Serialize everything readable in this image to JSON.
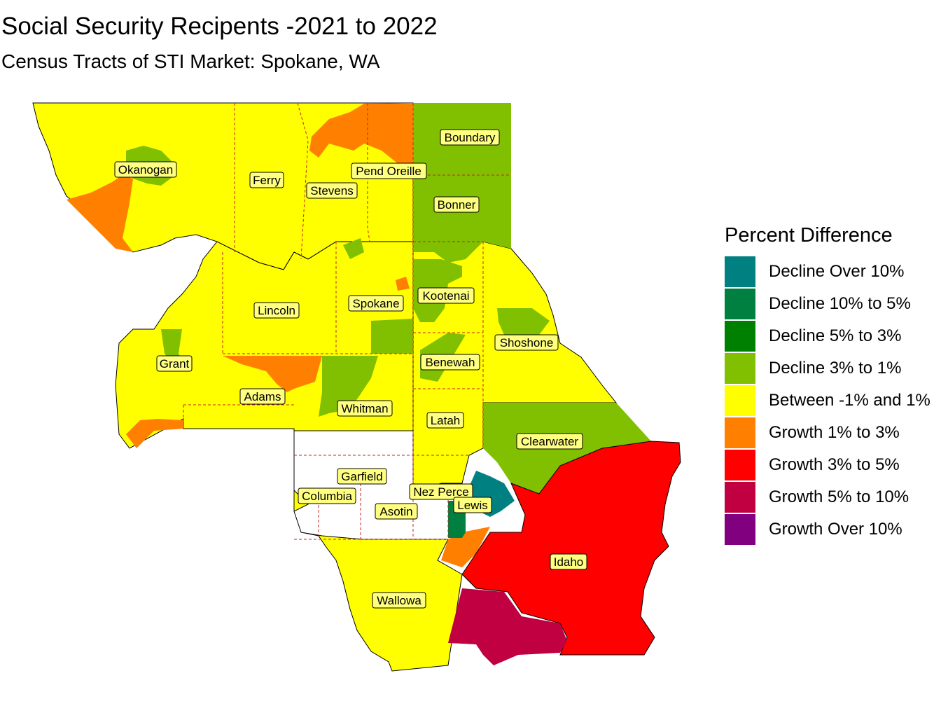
{
  "title": "Social Security Recipents -2021 to 2022",
  "subtitle": "Census Tracts of STI Market: Spokane, WA",
  "legend": {
    "title": "Percent Difference",
    "items": [
      {
        "label": "Decline Over 10%",
        "color": "#008080"
      },
      {
        "label": "Decline 10% to 5%",
        "color": "#008040"
      },
      {
        "label": "Decline 5% to 3%",
        "color": "#008000"
      },
      {
        "label": "Decline 3% to 1%",
        "color": "#80c000"
      },
      {
        "label": "Between -1% and 1%",
        "color": "#ffff00"
      },
      {
        "label": "Growth 1% to 3%",
        "color": "#ff8000"
      },
      {
        "label": "Growth 3% to 5%",
        "color": "#ff0000"
      },
      {
        "label": "Growth 5% to 10%",
        "color": "#c00040"
      },
      {
        "label": "Growth Over 10%",
        "color": "#800080"
      }
    ]
  },
  "counties": [
    {
      "name": "Okanogan",
      "label": "Okanogan"
    },
    {
      "name": "Ferry",
      "label": "Ferry"
    },
    {
      "name": "Stevens",
      "label": "Stevens"
    },
    {
      "name": "Pend Oreille",
      "label": "Pend Oreille"
    },
    {
      "name": "Boundary",
      "label": "Boundary"
    },
    {
      "name": "Bonner",
      "label": "Bonner"
    },
    {
      "name": "Lincoln",
      "label": "Lincoln"
    },
    {
      "name": "Spokane",
      "label": "Spokane"
    },
    {
      "name": "Kootenai",
      "label": "Kootenai"
    },
    {
      "name": "Shoshone",
      "label": "Shoshone"
    },
    {
      "name": "Grant",
      "label": "Grant"
    },
    {
      "name": "Benewah",
      "label": "Benewah"
    },
    {
      "name": "Adams",
      "label": "Adams"
    },
    {
      "name": "Whitman",
      "label": "Whitman"
    },
    {
      "name": "Latah",
      "label": "Latah"
    },
    {
      "name": "Clearwater",
      "label": "Clearwater"
    },
    {
      "name": "Garfield",
      "label": "Garfield"
    },
    {
      "name": "Nez Perce",
      "label": "Nez Perce"
    },
    {
      "name": "Columbia",
      "label": "Columbia"
    },
    {
      "name": "Lewis",
      "label": "Lewis"
    },
    {
      "name": "Asotin",
      "label": "Asotin"
    },
    {
      "name": "Idaho",
      "label": "Idaho"
    },
    {
      "name": "Wallowa",
      "label": "Wallowa"
    }
  ]
}
